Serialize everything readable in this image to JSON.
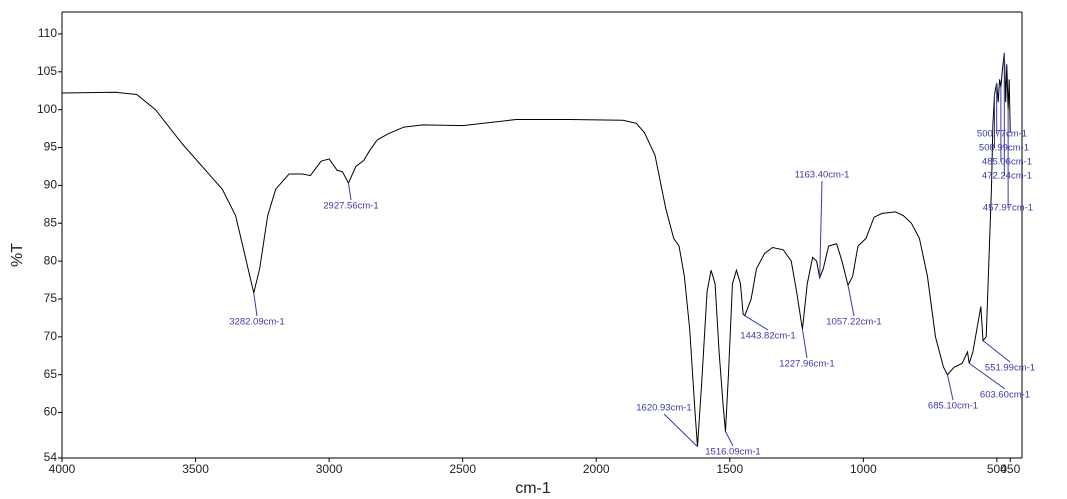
{
  "chart_data": {
    "type": "line",
    "xlabel": "cm-1",
    "ylabel": "%T",
    "xlim": [
      4000,
      406
    ],
    "ylim": [
      54,
      112.9
    ],
    "xticks": [
      4000,
      3500,
      3000,
      2500,
      2000,
      1500,
      1000,
      500,
      450
    ],
    "yticks": [
      54,
      60,
      65,
      70,
      75,
      80,
      85,
      90,
      95,
      100,
      105,
      110
    ],
    "series": [
      {
        "color": "#000000",
        "x": [
          4000,
          3800,
          3720,
          3650,
          3550,
          3450,
          3400,
          3350,
          3310,
          3282.09,
          3260,
          3230,
          3200,
          3150,
          3100,
          3070,
          3030,
          3000,
          2970,
          2950,
          2927.56,
          2900,
          2870,
          2850,
          2820,
          2780,
          2720,
          2650,
          2500,
          2300,
          2100,
          1900,
          1850,
          1820,
          1780,
          1740,
          1710,
          1690,
          1670,
          1650,
          1630,
          1620.93,
          1605,
          1585,
          1570,
          1555,
          1540,
          1525,
          1516.09,
          1505,
          1490,
          1475,
          1460,
          1450,
          1443.82,
          1420,
          1400,
          1370,
          1340,
          1300,
          1270,
          1250,
          1227.96,
          1210,
          1190,
          1175,
          1163.4,
          1150,
          1130,
          1100,
          1080,
          1057.22,
          1040,
          1020,
          990,
          960,
          930,
          880,
          850,
          820,
          790,
          760,
          730,
          700,
          685.1,
          660,
          630,
          610,
          603.6,
          590,
          570,
          560,
          551.99,
          540,
          530,
          520,
          515,
          508.99,
          500.77,
          495,
          490,
          485.06,
          480,
          472.24,
          467,
          463,
          457.97,
          454,
          450
        ],
        "values": [
          102.2,
          102.3,
          102,
          100,
          95.5,
          91.5,
          89.5,
          86,
          80,
          75.8,
          79,
          86,
          89.5,
          91.5,
          91.5,
          91.3,
          93.2,
          93.5,
          92,
          91.8,
          90.3,
          92.5,
          93.3,
          94.5,
          96,
          96.8,
          97.7,
          98,
          97.9,
          98.7,
          98.7,
          98.6,
          98.2,
          97,
          94,
          87,
          83,
          82,
          78,
          71,
          60,
          55.5,
          64,
          76,
          78.8,
          77,
          68,
          61,
          57.5,
          65,
          77,
          78.8,
          77,
          73,
          72.8,
          75,
          79,
          81,
          81.8,
          81.5,
          80,
          76,
          71,
          77,
          80.5,
          80,
          77.8,
          79,
          82,
          82.3,
          80,
          76.8,
          78,
          82,
          83,
          85.8,
          86.3,
          86.5,
          86,
          85,
          83,
          78,
          70,
          66,
          65,
          66,
          66.5,
          68,
          66.5,
          68,
          72,
          74,
          69.5,
          70,
          80,
          90,
          98,
          102,
          103.5,
          101,
          104,
          103,
          105,
          107.5,
          101,
          106,
          100,
          104,
          97
        ]
      }
    ],
    "annotations": [
      {
        "label": "3282.09cm-1",
        "x": 3282.09,
        "y": 75.8
      },
      {
        "label": "2927.56cm-1",
        "x": 2927.56,
        "y": 90.3
      },
      {
        "label": "1620.93cm-1",
        "x": 1620.93,
        "y": 55.5
      },
      {
        "label": "1516.09cm-1",
        "x": 1516.09,
        "y": 57.5
      },
      {
        "label": "1443.82cm-1",
        "x": 1443.82,
        "y": 72.8
      },
      {
        "label": "1227.96cm-1",
        "x": 1227.96,
        "y": 71
      },
      {
        "label": "1163.40cm-1",
        "x": 1163.4,
        "y": 77.8
      },
      {
        "label": "1057.22cm-1",
        "x": 1057.22,
        "y": 76.8
      },
      {
        "label": "685.10cm-1",
        "x": 685.1,
        "y": 65
      },
      {
        "label": "603.60cm-1",
        "x": 603.6,
        "y": 66.5
      },
      {
        "label": "551.99cm-1",
        "x": 551.99,
        "y": 69.5
      },
      {
        "label": "500.77cm-1",
        "x": 500.77,
        "y": 103.5
      },
      {
        "label": "508.99cm-1",
        "x": 508.99,
        "y": 102
      },
      {
        "label": "485.06cm-1",
        "x": 485.06,
        "y": 103
      },
      {
        "label": "472.24cm-1",
        "x": 472.24,
        "y": 107.5
      },
      {
        "label": "457.97cm-1",
        "x": 457.97,
        "y": 100
      }
    ],
    "annotation_color": "#3a3aa8"
  }
}
